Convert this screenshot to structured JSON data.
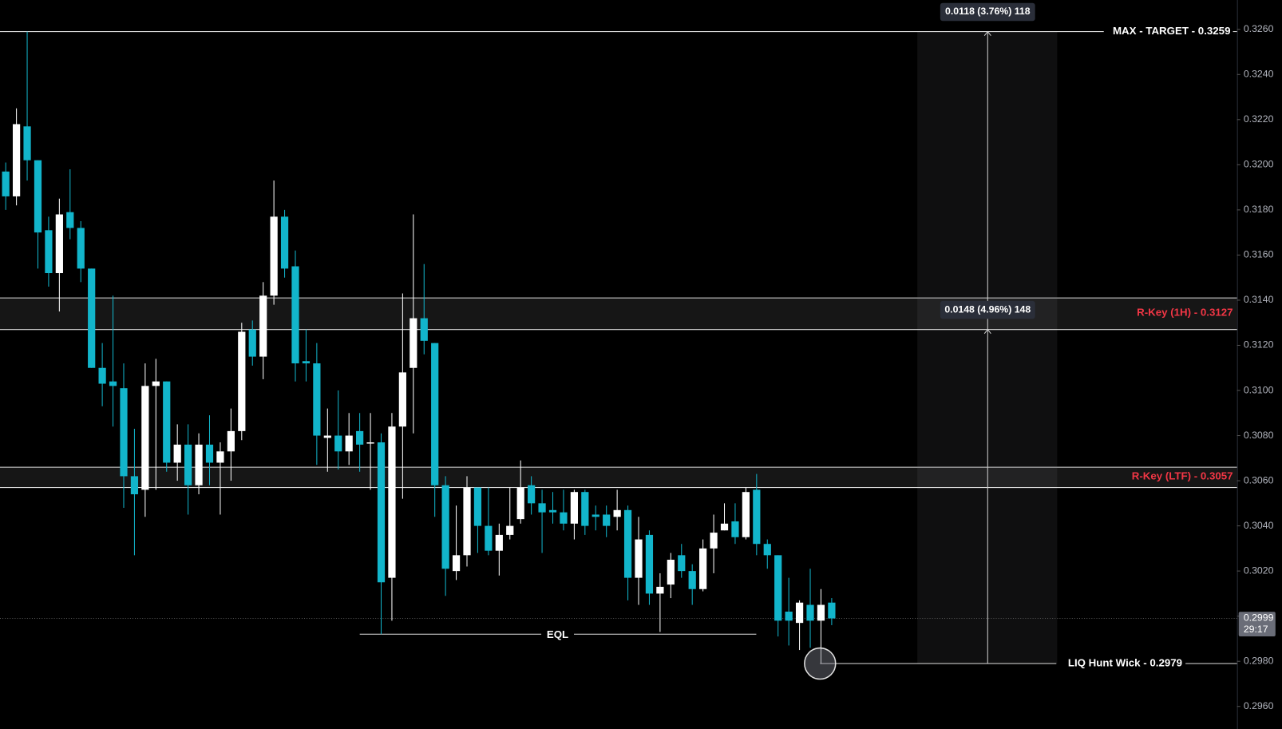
{
  "chart_data": {
    "type": "candlestick",
    "bull_color": "#ffffff",
    "bear_color": "#12b5cb",
    "open": [
      0.3197,
      0.3186,
      0.3217,
      0.3202,
      0.3171,
      0.3152,
      0.3179,
      0.3172,
      0.3154,
      0.311,
      0.3104,
      0.3101,
      0.3062,
      0.3056,
      0.3102,
      0.3104,
      0.3068,
      0.3076,
      0.3058,
      0.3076,
      0.3068,
      0.3073,
      0.3082,
      0.3127,
      0.3115,
      0.3142,
      0.3177,
      0.3155,
      0.3113,
      0.3112,
      0.3079,
      0.308,
      0.3073,
      0.3082,
      0.3077,
      0.3077,
      0.3017,
      0.3084,
      0.311,
      0.3132,
      0.3121,
      0.3058,
      0.302,
      0.3027,
      0.3057,
      0.304,
      0.3029,
      0.3036,
      0.3043,
      0.3058,
      0.305,
      0.3047,
      0.3046,
      0.3041,
      0.3055,
      0.3045,
      0.3045,
      0.3044,
      0.3047,
      0.3017,
      0.3036,
      0.301,
      0.3014,
      0.3027,
      0.302,
      0.3012,
      0.303,
      0.3038,
      0.3042,
      0.3035,
      0.3056,
      0.3032,
      0.3027,
      0.3002,
      0.2997,
      0.3005,
      0.2998,
      0.3006
    ],
    "high": [
      0.3201,
      0.3225,
      0.3259,
      0.3202,
      0.3177,
      0.3185,
      0.3198,
      0.3175,
      0.3154,
      0.3121,
      0.3142,
      0.3112,
      0.3083,
      0.3112,
      0.3114,
      0.3104,
      0.3085,
      0.3085,
      0.3081,
      0.3089,
      0.3077,
      0.3092,
      0.313,
      0.3131,
      0.3148,
      0.3193,
      0.318,
      0.3162,
      0.3127,
      0.3121,
      0.3092,
      0.31,
      0.309,
      0.309,
      0.309,
      0.3081,
      0.309,
      0.3143,
      0.3178,
      0.3156,
      0.3121,
      0.3062,
      0.3049,
      0.3062,
      0.3057,
      0.3057,
      0.3041,
      0.3057,
      0.3069,
      0.3062,
      0.3056,
      0.3055,
      0.3056,
      0.3056,
      0.3056,
      0.3049,
      0.3049,
      0.3056,
      0.3049,
      0.3044,
      0.3038,
      0.3019,
      0.3028,
      0.3032,
      0.3023,
      0.3034,
      0.3045,
      0.305,
      0.305,
      0.3057,
      0.3063,
      0.3034,
      0.3027,
      0.3017,
      0.3007,
      0.3021,
      0.3012,
      0.3008
    ],
    "low": [
      0.318,
      0.3182,
      0.3193,
      0.3154,
      0.3146,
      0.3135,
      0.3167,
      0.3148,
      0.311,
      0.3093,
      0.3084,
      0.3048,
      0.3027,
      0.3044,
      0.3056,
      0.3064,
      0.306,
      0.3045,
      0.3054,
      0.3058,
      0.3045,
      0.306,
      0.3078,
      0.3111,
      0.3105,
      0.3138,
      0.315,
      0.3104,
      0.3104,
      0.3067,
      0.3064,
      0.3065,
      0.3067,
      0.3064,
      0.3056,
      0.2992,
      0.2998,
      0.3052,
      0.3081,
      0.3116,
      0.3044,
      0.3009,
      0.3016,
      0.3022,
      0.3028,
      0.3027,
      0.3018,
      0.3034,
      0.3041,
      0.3045,
      0.3028,
      0.3041,
      0.3038,
      0.3034,
      0.3036,
      0.3038,
      0.3035,
      0.3038,
      0.3007,
      0.3005,
      0.3005,
      0.2993,
      0.3008,
      0.3017,
      0.3005,
      0.3011,
      0.3019,
      0.3038,
      0.3032,
      0.3034,
      0.3027,
      0.3021,
      0.2991,
      0.2987,
      0.2985,
      0.2986,
      0.2979,
      0.2996
    ],
    "close": [
      0.3186,
      0.3218,
      0.3202,
      0.317,
      0.3152,
      0.3178,
      0.3172,
      0.3154,
      0.311,
      0.3103,
      0.3102,
      0.3062,
      0.3054,
      0.3102,
      0.3104,
      0.3068,
      0.3076,
      0.3058,
      0.3076,
      0.3068,
      0.3073,
      0.3082,
      0.3126,
      0.3115,
      0.3142,
      0.3177,
      0.3154,
      0.3112,
      0.3112,
      0.308,
      0.308,
      0.3073,
      0.308,
      0.3076,
      0.3077,
      0.3015,
      0.3084,
      0.3108,
      0.3132,
      0.3122,
      0.3058,
      0.3021,
      0.3027,
      0.3057,
      0.304,
      0.3029,
      0.3036,
      0.304,
      0.3057,
      0.305,
      0.3046,
      0.3046,
      0.3041,
      0.3055,
      0.304,
      0.3044,
      0.304,
      0.3047,
      0.3017,
      0.3034,
      0.301,
      0.3013,
      0.3025,
      0.302,
      0.3012,
      0.303,
      0.3037,
      0.3041,
      0.3035,
      0.3055,
      0.3032,
      0.3027,
      0.2998,
      0.2998,
      0.3006,
      0.2998,
      0.3005,
      0.2999
    ],
    "ylim": [
      0.295,
      0.3273
    ],
    "yticks": [
      {
        "value": 0.296,
        "label": "0.2960"
      },
      {
        "value": 0.298,
        "label": "0.2980"
      },
      {
        "value": 0.3,
        "label": "0.3000"
      },
      {
        "value": 0.302,
        "label": "0.3020"
      },
      {
        "value": 0.304,
        "label": "0.3040"
      },
      {
        "value": 0.306,
        "label": "0.3060"
      },
      {
        "value": 0.308,
        "label": "0.3080"
      },
      {
        "value": 0.31,
        "label": "0.3100"
      },
      {
        "value": 0.312,
        "label": "0.3120"
      },
      {
        "value": 0.314,
        "label": "0.3140"
      },
      {
        "value": 0.316,
        "label": "0.3160"
      },
      {
        "value": 0.318,
        "label": "0.3180"
      },
      {
        "value": 0.32,
        "label": "0.3200"
      },
      {
        "value": 0.322,
        "label": "0.3220"
      },
      {
        "value": 0.324,
        "label": "0.3240"
      },
      {
        "value": 0.326,
        "label": "0.3260"
      }
    ],
    "zones": [
      {
        "from": 0.3127,
        "to": 0.3141
      },
      {
        "from": 0.3057,
        "to": 0.3066
      }
    ],
    "levels": [
      {
        "value": 0.3259,
        "label": "MAX - TARGET - 0.3259",
        "color": "#ffffff"
      },
      {
        "value": 0.3127,
        "label": "R-Key (1H) - 0.3127",
        "color": "#f23645"
      },
      {
        "value": 0.3057,
        "label": "R-Key (LTF) - 0.3057",
        "color": "#f23645"
      },
      {
        "value": 0.2979,
        "label": "LIQ Hunt Wick - 0.2979",
        "color": "#ffffff"
      }
    ],
    "measures": [
      {
        "from": 0.3141,
        "to": 0.3259,
        "label": "0.0118 (3.76%) 118"
      },
      {
        "from": 0.2979,
        "to": 0.3127,
        "label": "0.0148 (4.96%) 148"
      }
    ],
    "eql": {
      "value": 0.2992,
      "label": "EQL"
    },
    "last_price": {
      "value": 0.2999,
      "label": "0.2999",
      "countdown": "29:17"
    }
  }
}
